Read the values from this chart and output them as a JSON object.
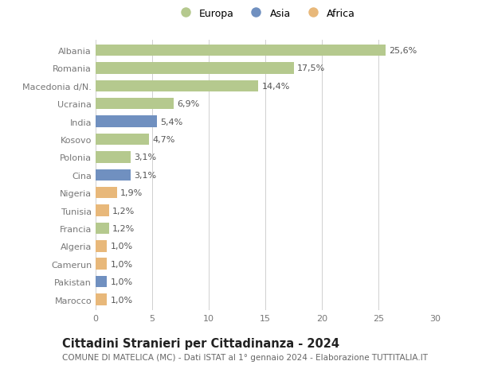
{
  "countries": [
    "Albania",
    "Romania",
    "Macedonia d/N.",
    "Ucraina",
    "India",
    "Kosovo",
    "Polonia",
    "Cina",
    "Nigeria",
    "Tunisia",
    "Francia",
    "Algeria",
    "Camerun",
    "Pakistan",
    "Marocco"
  ],
  "values": [
    25.6,
    17.5,
    14.4,
    6.9,
    5.4,
    4.7,
    3.1,
    3.1,
    1.9,
    1.2,
    1.2,
    1.0,
    1.0,
    1.0,
    1.0
  ],
  "labels": [
    "25,6%",
    "17,5%",
    "14,4%",
    "6,9%",
    "5,4%",
    "4,7%",
    "3,1%",
    "3,1%",
    "1,9%",
    "1,2%",
    "1,2%",
    "1,0%",
    "1,0%",
    "1,0%",
    "1,0%"
  ],
  "continents": [
    "Europa",
    "Europa",
    "Europa",
    "Europa",
    "Asia",
    "Europa",
    "Europa",
    "Asia",
    "Africa",
    "Africa",
    "Europa",
    "Africa",
    "Africa",
    "Asia",
    "Africa"
  ],
  "colors": {
    "Europa": "#b5c98e",
    "Asia": "#7090c0",
    "Africa": "#e8b87a"
  },
  "legend_items": [
    "Europa",
    "Asia",
    "Africa"
  ],
  "title": "Cittadini Stranieri per Cittadinanza - 2024",
  "subtitle": "COMUNE DI MATELICA (MC) - Dati ISTAT al 1° gennaio 2024 - Elaborazione TUTTITALIA.IT",
  "xlim": [
    0,
    30
  ],
  "xticks": [
    0,
    5,
    10,
    15,
    20,
    25,
    30
  ],
  "background_color": "#ffffff",
  "grid_color": "#d0d0d0",
  "bar_height": 0.65,
  "label_fontsize": 8,
  "tick_fontsize": 8,
  "title_fontsize": 10.5,
  "subtitle_fontsize": 7.5
}
